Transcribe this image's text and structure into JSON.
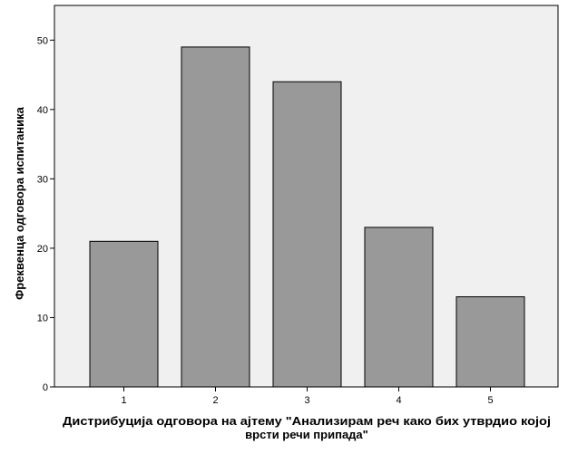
{
  "chart_data": {
    "type": "bar",
    "title": "",
    "categories": [
      "1",
      "2",
      "3",
      "4",
      "5"
    ],
    "values": [
      21,
      49,
      44,
      23,
      13
    ],
    "xlabel_lines": [
      "Дистрибуција одговора на ајтему \"Анализирам реч како бих утврдио којој",
      "врсти речи припада\""
    ],
    "ylabel": "Фреквенца одговора испитаника",
    "ylim": [
      0,
      55
    ],
    "yticks": [
      "0",
      "10",
      "20",
      "30",
      "40",
      "50"
    ],
    "grid": false,
    "legend": "none",
    "colors": {
      "plot_background": "#f0f0f0",
      "bar_fill": "#999999",
      "bar_stroke": "#000000",
      "axis": "#000000"
    }
  }
}
